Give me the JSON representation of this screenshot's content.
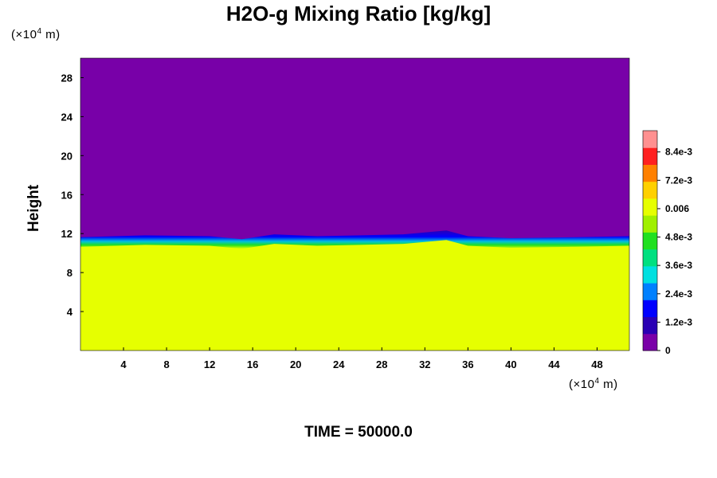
{
  "chart_data": {
    "type": "heatmap",
    "title": "H2O-g Mixing Ratio [kg/kg]",
    "ylabel": "Height",
    "y_unit_parts": [
      "(×10",
      "4",
      " m)"
    ],
    "x_unit_parts": [
      "(×10",
      "4",
      " m)"
    ],
    "footer": "TIME = 50000.0",
    "x_ticks": [
      4,
      8,
      12,
      16,
      20,
      24,
      28,
      32,
      36,
      40,
      44,
      48
    ],
    "y_ticks": [
      4,
      8,
      12,
      16,
      20,
      24,
      28
    ],
    "xlim": [
      0,
      51
    ],
    "ylim": [
      0,
      30
    ],
    "colorbar_labels": [
      "0",
      "1.2e-3",
      "2.4e-3",
      "3.6e-3",
      "4.8e-3",
      "0.006",
      "7.2e-3",
      "8.4e-3"
    ],
    "colorbar_values": [
      0,
      0.0012,
      0.0024,
      0.0036,
      0.0048,
      0.006,
      0.0072,
      0.0084
    ],
    "colorbar_range": [
      0,
      0.0093
    ],
    "colorbar_colors": [
      "#7a00a8",
      "#2a00b4",
      "#0000ff",
      "#0080ff",
      "#00e0e0",
      "#00e080",
      "#20e020",
      "#a0f000",
      "#e6ff00",
      "#ffd000",
      "#ff8000",
      "#ff2020",
      "#ff9090"
    ],
    "fields": {
      "upper_layer_color": "#7800a8",
      "lower_layer_color": "#e6ff00",
      "interface_height": 11.3,
      "interface_band": [
        {
          "x": 0,
          "y": 11.3
        },
        {
          "x": 6,
          "y": 11.5
        },
        {
          "x": 12,
          "y": 11.4
        },
        {
          "x": 15,
          "y": 11.1
        },
        {
          "x": 18,
          "y": 11.6
        },
        {
          "x": 22,
          "y": 11.4
        },
        {
          "x": 26,
          "y": 11.5
        },
        {
          "x": 30,
          "y": 11.6
        },
        {
          "x": 34,
          "y": 12.0
        },
        {
          "x": 36,
          "y": 11.4
        },
        {
          "x": 40,
          "y": 11.2
        },
        {
          "x": 46,
          "y": 11.3
        },
        {
          "x": 51,
          "y": 11.4
        }
      ]
    }
  }
}
